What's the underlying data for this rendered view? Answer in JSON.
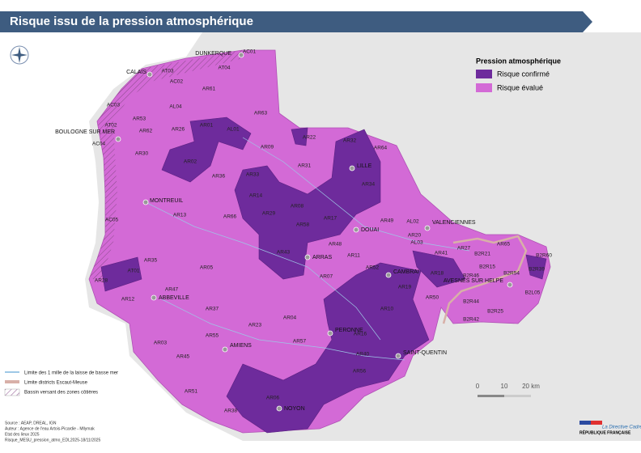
{
  "title": "Risque issu de la pression atmosphérique",
  "legend": {
    "title": "Pression atmosphérique",
    "items": [
      {
        "label": "Risque confirmé",
        "color": "#6e2b9c"
      },
      {
        "label": "Risque évalué",
        "color": "#d36ad6"
      }
    ]
  },
  "line_legend": [
    "Limite des 1 mille de la laisse de basse mer",
    "Limite districts Escaut-Meuse",
    "Bassin versant des zones côtières"
  ],
  "scale": [
    "0",
    "10",
    "20 km"
  ],
  "sources": [
    "Source : AEAP, DREAL, IGN",
    "Auteur : Agence de l'eau Artois-Picardie - Mllymak",
    "Etat des lieux 2025",
    "Risque_MESU_pression_atmo_EDL2025-18/11/2025"
  ],
  "logos": [
    "RÉPUBLIQUE FRANÇAISE",
    "La Directive Cadre Eau"
  ],
  "cities": [
    "DUNKERQUE",
    "CALAIS",
    "BOULOGNE SUR MER",
    "MONTREUIL",
    "ABBEVILLE",
    "AMIENS",
    "DOUAI",
    "VALENCIENNES",
    "AVESNES SUR HELPE",
    "CAMBRAI",
    "ARRAS",
    "PERONNE",
    "SAINT-QUENTIN",
    "LILLE",
    "NOYON"
  ],
  "water_bodies": [
    "AC01",
    "AT04",
    "AT03",
    "AC02",
    "AR61",
    "AL04",
    "AC03",
    "AR53",
    "AT02",
    "AR62",
    "AR26",
    "AR01",
    "AL01",
    "AC04",
    "AR30",
    "AR02",
    "AR63",
    "AR09",
    "AR22",
    "AR32",
    "AR64",
    "AR31",
    "AR33",
    "AR36",
    "AR34",
    "AR14",
    "AR08",
    "AR29",
    "AR17",
    "AR58",
    "AR13",
    "AR66",
    "AR49",
    "AL02",
    "AR20",
    "AL03",
    "AR48",
    "AC05",
    "AR43",
    "AR11",
    "AR41",
    "AR27",
    "AR65",
    "B2R21",
    "B2R60",
    "AR35",
    "AT01",
    "AR05",
    "AR52",
    "AR18",
    "B2R15",
    "B2R54",
    "B2R39",
    "B2R46",
    "AR07",
    "AR28",
    "AR19",
    "AR47",
    "AR12",
    "AR50",
    "B2R44",
    "B2L05",
    "AR10",
    "AR37",
    "B2R25",
    "B2R42",
    "AR04",
    "AR23",
    "AR16",
    "AR55",
    "AR57",
    "AR03",
    "AR40",
    "AR45",
    "AR56",
    "AR51",
    "AR06",
    "AR38"
  ]
}
